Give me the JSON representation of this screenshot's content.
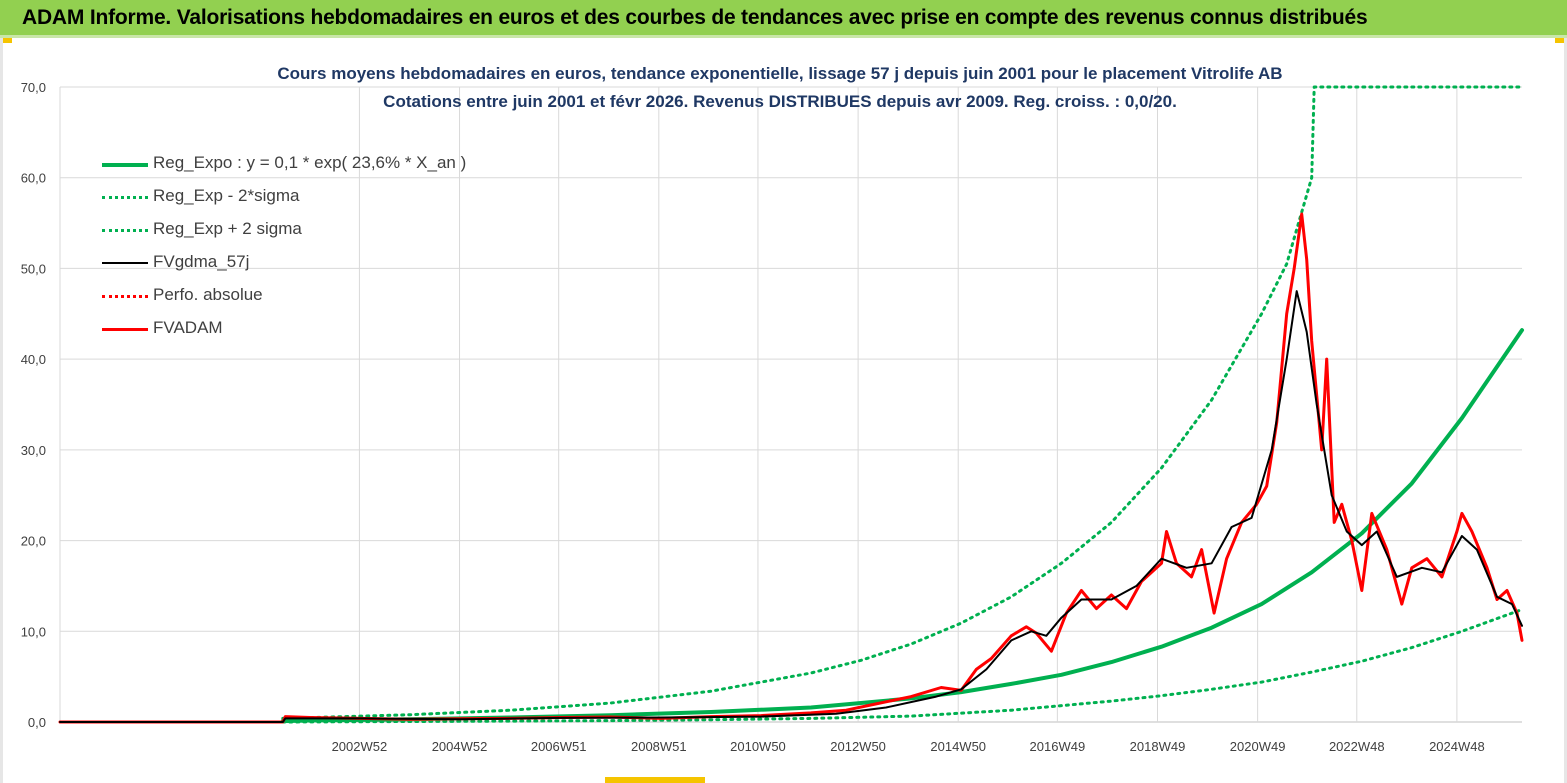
{
  "banner": {
    "title": "ADAM Informe. Valorisations hebdomadaires en euros et des courbes de tendances avec prise en compte des revenus connus distribués"
  },
  "colors": {
    "banner_bg": "#92d050",
    "reg_expo": "#00b050",
    "fvadam": "#ff0000",
    "fvgdma": "#000000",
    "title_text": "#1f3864",
    "grid": "#d9d9d9"
  },
  "chart_data": {
    "type": "line",
    "title": "Cours moyens hebdomadaires en euros, tendance exponentielle, lissage 57 j depuis juin 2001 pour le placement Vitrolife AB",
    "subtitle": "Cotations entre juin 2001 et févr 2026. Revenus DISTRIBUES depuis avr 2009. Reg. croiss. : 0,0/20.",
    "xlabel": "",
    "ylabel": "",
    "ylim": [
      0,
      70
    ],
    "xlim": [
      1997.0,
      2026.2
    ],
    "y_ticks": [
      "0,0",
      "10,0",
      "20,0",
      "30,0",
      "40,0",
      "50,0",
      "60,0",
      "70,0"
    ],
    "x_ticks": [
      {
        "label": "2002W52",
        "x": 2002.98
      },
      {
        "label": "2004W52",
        "x": 2004.98
      },
      {
        "label": "2006W51",
        "x": 2006.96
      },
      {
        "label": "2008W51",
        "x": 2008.96
      },
      {
        "label": "2010W50",
        "x": 2010.94
      },
      {
        "label": "2012W50",
        "x": 2012.94
      },
      {
        "label": "2014W50",
        "x": 2014.94
      },
      {
        "label": "2016W49",
        "x": 2016.92
      },
      {
        "label": "2018W49",
        "x": 2018.92
      },
      {
        "label": "2020W49",
        "x": 2020.92
      },
      {
        "label": "2022W48",
        "x": 2022.9
      },
      {
        "label": "2024W48",
        "x": 2024.9
      }
    ],
    "grid": true,
    "legend_position": "top-left",
    "series": [
      {
        "name": "Reg_Expo : y = 0,1 * exp( 23,6% *  X_an )",
        "style": "solid-thick",
        "color": "#00b050",
        "points": [
          [
            2001.45,
            0.1
          ],
          [
            2002,
            0.16
          ],
          [
            2004,
            0.3
          ],
          [
            2006,
            0.5
          ],
          [
            2008,
            0.75
          ],
          [
            2010,
            1.1
          ],
          [
            2012,
            1.6
          ],
          [
            2014,
            2.6
          ],
          [
            2015,
            3.3
          ],
          [
            2016,
            4.2
          ],
          [
            2017,
            5.2
          ],
          [
            2018,
            6.6
          ],
          [
            2019,
            8.3
          ],
          [
            2020,
            10.4
          ],
          [
            2021,
            13.0
          ],
          [
            2022,
            16.5
          ],
          [
            2023,
            20.8
          ],
          [
            2024,
            26.3
          ],
          [
            2025,
            33.5
          ],
          [
            2026.2,
            43.2
          ]
        ]
      },
      {
        "name": "Reg_Exp - 2*sigma",
        "style": "dotted",
        "color": "#00b050",
        "points": [
          [
            2001.45,
            0.0
          ],
          [
            2004,
            0.05
          ],
          [
            2006,
            0.1
          ],
          [
            2008,
            0.15
          ],
          [
            2010,
            0.25
          ],
          [
            2012,
            0.4
          ],
          [
            2014,
            0.65
          ],
          [
            2016,
            1.3
          ],
          [
            2018,
            2.3
          ],
          [
            2019,
            2.9
          ],
          [
            2020,
            3.6
          ],
          [
            2021,
            4.4
          ],
          [
            2022,
            5.5
          ],
          [
            2023,
            6.7
          ],
          [
            2024,
            8.2
          ],
          [
            2025,
            10.0
          ],
          [
            2026.2,
            12.4
          ]
        ]
      },
      {
        "name": "Reg_Exp + 2 sigma",
        "style": "dotted",
        "color": "#00b050",
        "points": [
          [
            2001.45,
            0.4
          ],
          [
            2004,
            0.8
          ],
          [
            2006,
            1.3
          ],
          [
            2008,
            2.1
          ],
          [
            2010,
            3.4
          ],
          [
            2012,
            5.4
          ],
          [
            2013,
            6.8
          ],
          [
            2014,
            8.6
          ],
          [
            2015,
            10.9
          ],
          [
            2016,
            13.8
          ],
          [
            2017,
            17.5
          ],
          [
            2018,
            22.0
          ],
          [
            2019,
            28.0
          ],
          [
            2020,
            35.5
          ],
          [
            2021,
            45.0
          ],
          [
            2021.5,
            50.5
          ],
          [
            2022,
            60.0
          ],
          [
            2022.05,
            70.0
          ],
          [
            2026.2,
            70.0
          ]
        ]
      },
      {
        "name": "FVgdma_57j",
        "style": "solid-thin",
        "color": "#000000",
        "points": [
          [
            1997.0,
            0
          ],
          [
            2001.45,
            0
          ],
          [
            2001.5,
            0.4
          ],
          [
            2003,
            0.4
          ],
          [
            2005,
            0.3
          ],
          [
            2007,
            0.45
          ],
          [
            2009,
            0.5
          ],
          [
            2011,
            0.6
          ],
          [
            2012.5,
            0.9
          ],
          [
            2013.5,
            1.6
          ],
          [
            2014.5,
            2.8
          ],
          [
            2015,
            3.6
          ],
          [
            2015.5,
            5.8
          ],
          [
            2016,
            9.0
          ],
          [
            2016.4,
            10.0
          ],
          [
            2016.7,
            9.5
          ],
          [
            2017,
            11.5
          ],
          [
            2017.4,
            13.5
          ],
          [
            2018,
            13.5
          ],
          [
            2018.5,
            15.0
          ],
          [
            2019,
            18.0
          ],
          [
            2019.5,
            17.0
          ],
          [
            2020,
            17.5
          ],
          [
            2020.4,
            21.5
          ],
          [
            2020.8,
            22.5
          ],
          [
            2021.2,
            30.0
          ],
          [
            2021.5,
            40.0
          ],
          [
            2021.7,
            47.5
          ],
          [
            2021.9,
            43.0
          ],
          [
            2022.1,
            35.0
          ],
          [
            2022.4,
            25.0
          ],
          [
            2022.7,
            21.0
          ],
          [
            2023,
            19.5
          ],
          [
            2023.3,
            21.0
          ],
          [
            2023.7,
            16.0
          ],
          [
            2024.2,
            17.0
          ],
          [
            2024.6,
            16.5
          ],
          [
            2025,
            20.5
          ],
          [
            2025.3,
            19.0
          ],
          [
            2025.7,
            13.8
          ],
          [
            2026,
            13.0
          ],
          [
            2026.2,
            10.6
          ]
        ]
      },
      {
        "name": "Perfo. absolue",
        "style": "dotted",
        "color": "#ff0000",
        "points": []
      },
      {
        "name": "FVADAM",
        "style": "solid-thick",
        "color": "#ff0000",
        "points": [
          [
            1997.0,
            0
          ],
          [
            2001.45,
            0
          ],
          [
            2001.5,
            0.6
          ],
          [
            2002,
            0.5
          ],
          [
            2003,
            0.4
          ],
          [
            2004,
            0.3
          ],
          [
            2005,
            0.35
          ],
          [
            2006,
            0.4
          ],
          [
            2007,
            0.5
          ],
          [
            2008,
            0.55
          ],
          [
            2009,
            0.4
          ],
          [
            2010,
            0.6
          ],
          [
            2011,
            0.7
          ],
          [
            2012,
            1.0
          ],
          [
            2012.7,
            1.3
          ],
          [
            2013.3,
            2.0
          ],
          [
            2014,
            2.8
          ],
          [
            2014.6,
            3.8
          ],
          [
            2015,
            3.5
          ],
          [
            2015.3,
            5.8
          ],
          [
            2015.6,
            7.0
          ],
          [
            2016,
            9.5
          ],
          [
            2016.3,
            10.5
          ],
          [
            2016.5,
            9.8
          ],
          [
            2016.8,
            7.8
          ],
          [
            2017.1,
            12.0
          ],
          [
            2017.4,
            14.5
          ],
          [
            2017.7,
            12.5
          ],
          [
            2018,
            14.0
          ],
          [
            2018.3,
            12.5
          ],
          [
            2018.6,
            15.5
          ],
          [
            2019,
            17.5
          ],
          [
            2019.1,
            21.0
          ],
          [
            2019.3,
            17.5
          ],
          [
            2019.6,
            16.0
          ],
          [
            2019.8,
            19.0
          ],
          [
            2020.05,
            12.0
          ],
          [
            2020.3,
            18.0
          ],
          [
            2020.6,
            22.0
          ],
          [
            2020.9,
            24.0
          ],
          [
            2021.1,
            26.0
          ],
          [
            2021.3,
            33.0
          ],
          [
            2021.5,
            45.0
          ],
          [
            2021.65,
            50.0
          ],
          [
            2021.8,
            56.0
          ],
          [
            2021.9,
            51.0
          ],
          [
            2022.0,
            42.0
          ],
          [
            2022.2,
            30.0
          ],
          [
            2022.3,
            40.0
          ],
          [
            2022.45,
            22.0
          ],
          [
            2022.6,
            24.0
          ],
          [
            2022.8,
            20.0
          ],
          [
            2023.0,
            14.5
          ],
          [
            2023.2,
            23.0
          ],
          [
            2023.5,
            19.0
          ],
          [
            2023.8,
            13.0
          ],
          [
            2024.0,
            17.0
          ],
          [
            2024.3,
            18.0
          ],
          [
            2024.6,
            16.0
          ],
          [
            2024.9,
            21.0
          ],
          [
            2025.0,
            23.0
          ],
          [
            2025.2,
            21.0
          ],
          [
            2025.5,
            17.0
          ],
          [
            2025.7,
            13.5
          ],
          [
            2025.9,
            14.5
          ],
          [
            2026.1,
            12.0
          ],
          [
            2026.2,
            9.0
          ]
        ]
      }
    ]
  }
}
